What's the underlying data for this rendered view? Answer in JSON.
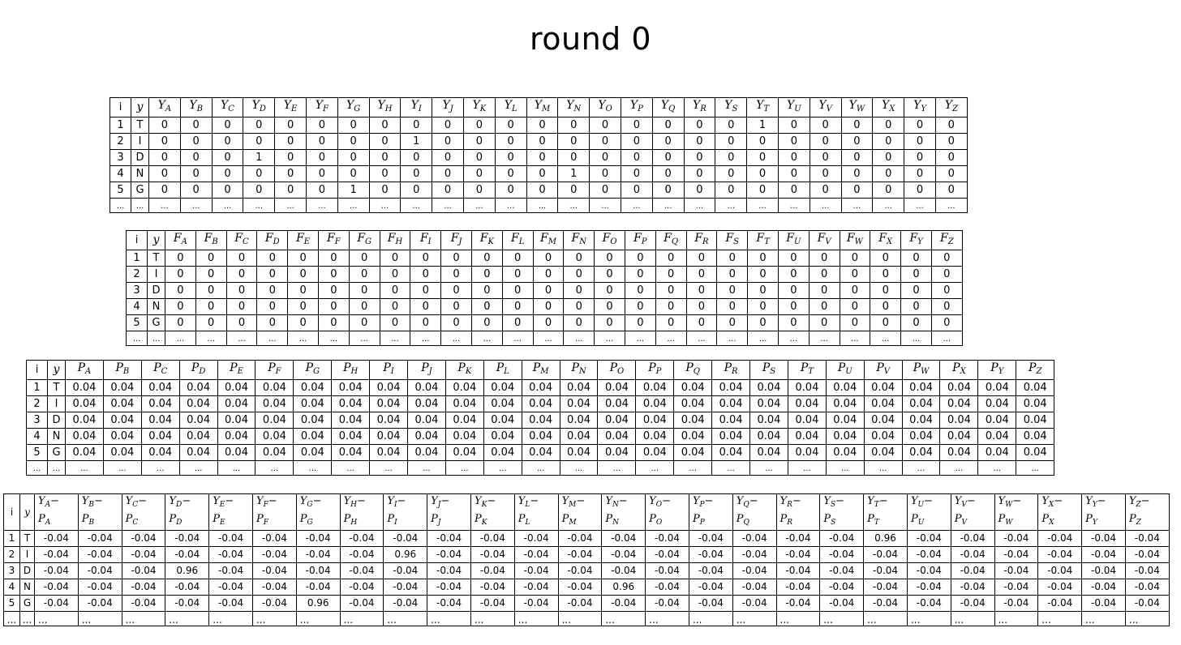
{
  "title": "round 0",
  "letters": [
    "A",
    "B",
    "C",
    "D",
    "E",
    "F",
    "G",
    "H",
    "I",
    "J",
    "K",
    "L",
    "M",
    "N",
    "O",
    "P",
    "Q",
    "R",
    "S",
    "T",
    "U",
    "V",
    "W",
    "X",
    "Y",
    "Z"
  ],
  "ellipsis": "...",
  "headers": {
    "i": "i",
    "y": "y"
  },
  "tables": [
    {
      "key": "Y",
      "prefix": "Y",
      "rows": [
        {
          "i": "1",
          "y": "T",
          "values": [
            "0",
            "0",
            "0",
            "0",
            "0",
            "0",
            "0",
            "0",
            "0",
            "0",
            "0",
            "0",
            "0",
            "0",
            "0",
            "0",
            "0",
            "0",
            "0",
            "1",
            "0",
            "0",
            "0",
            "0",
            "0",
            "0"
          ]
        },
        {
          "i": "2",
          "y": "I",
          "values": [
            "0",
            "0",
            "0",
            "0",
            "0",
            "0",
            "0",
            "0",
            "1",
            "0",
            "0",
            "0",
            "0",
            "0",
            "0",
            "0",
            "0",
            "0",
            "0",
            "0",
            "0",
            "0",
            "0",
            "0",
            "0",
            "0"
          ]
        },
        {
          "i": "3",
          "y": "D",
          "values": [
            "0",
            "0",
            "0",
            "1",
            "0",
            "0",
            "0",
            "0",
            "0",
            "0",
            "0",
            "0",
            "0",
            "0",
            "0",
            "0",
            "0",
            "0",
            "0",
            "0",
            "0",
            "0",
            "0",
            "0",
            "0",
            "0"
          ]
        },
        {
          "i": "4",
          "y": "N",
          "values": [
            "0",
            "0",
            "0",
            "0",
            "0",
            "0",
            "0",
            "0",
            "0",
            "0",
            "0",
            "0",
            "0",
            "1",
            "0",
            "0",
            "0",
            "0",
            "0",
            "0",
            "0",
            "0",
            "0",
            "0",
            "0",
            "0"
          ]
        },
        {
          "i": "5",
          "y": "G",
          "values": [
            "0",
            "0",
            "0",
            "0",
            "0",
            "0",
            "1",
            "0",
            "0",
            "0",
            "0",
            "0",
            "0",
            "0",
            "0",
            "0",
            "0",
            "0",
            "0",
            "0",
            "0",
            "0",
            "0",
            "0",
            "0",
            "0"
          ]
        }
      ]
    },
    {
      "key": "F",
      "prefix": "F",
      "rows": [
        {
          "i": "1",
          "y": "T",
          "values": [
            "0",
            "0",
            "0",
            "0",
            "0",
            "0",
            "0",
            "0",
            "0",
            "0",
            "0",
            "0",
            "0",
            "0",
            "0",
            "0",
            "0",
            "0",
            "0",
            "0",
            "0",
            "0",
            "0",
            "0",
            "0",
            "0"
          ]
        },
        {
          "i": "2",
          "y": "I",
          "values": [
            "0",
            "0",
            "0",
            "0",
            "0",
            "0",
            "0",
            "0",
            "0",
            "0",
            "0",
            "0",
            "0",
            "0",
            "0",
            "0",
            "0",
            "0",
            "0",
            "0",
            "0",
            "0",
            "0",
            "0",
            "0",
            "0"
          ]
        },
        {
          "i": "3",
          "y": "D",
          "values": [
            "0",
            "0",
            "0",
            "0",
            "0",
            "0",
            "0",
            "0",
            "0",
            "0",
            "0",
            "0",
            "0",
            "0",
            "0",
            "0",
            "0",
            "0",
            "0",
            "0",
            "0",
            "0",
            "0",
            "0",
            "0",
            "0"
          ]
        },
        {
          "i": "4",
          "y": "N",
          "values": [
            "0",
            "0",
            "0",
            "0",
            "0",
            "0",
            "0",
            "0",
            "0",
            "0",
            "0",
            "0",
            "0",
            "0",
            "0",
            "0",
            "0",
            "0",
            "0",
            "0",
            "0",
            "0",
            "0",
            "0",
            "0",
            "0"
          ]
        },
        {
          "i": "5",
          "y": "G",
          "values": [
            "0",
            "0",
            "0",
            "0",
            "0",
            "0",
            "0",
            "0",
            "0",
            "0",
            "0",
            "0",
            "0",
            "0",
            "0",
            "0",
            "0",
            "0",
            "0",
            "0",
            "0",
            "0",
            "0",
            "0",
            "0",
            "0"
          ]
        }
      ]
    },
    {
      "key": "P",
      "prefix": "P",
      "rows": [
        {
          "i": "1",
          "y": "T",
          "values": [
            "0.04",
            "0.04",
            "0.04",
            "0.04",
            "0.04",
            "0.04",
            "0.04",
            "0.04",
            "0.04",
            "0.04",
            "0.04",
            "0.04",
            "0.04",
            "0.04",
            "0.04",
            "0.04",
            "0.04",
            "0.04",
            "0.04",
            "0.04",
            "0.04",
            "0.04",
            "0.04",
            "0.04",
            "0.04",
            "0.04"
          ]
        },
        {
          "i": "2",
          "y": "I",
          "values": [
            "0.04",
            "0.04",
            "0.04",
            "0.04",
            "0.04",
            "0.04",
            "0.04",
            "0.04",
            "0.04",
            "0.04",
            "0.04",
            "0.04",
            "0.04",
            "0.04",
            "0.04",
            "0.04",
            "0.04",
            "0.04",
            "0.04",
            "0.04",
            "0.04",
            "0.04",
            "0.04",
            "0.04",
            "0.04",
            "0.04"
          ]
        },
        {
          "i": "3",
          "y": "D",
          "values": [
            "0.04",
            "0.04",
            "0.04",
            "0.04",
            "0.04",
            "0.04",
            "0.04",
            "0.04",
            "0.04",
            "0.04",
            "0.04",
            "0.04",
            "0.04",
            "0.04",
            "0.04",
            "0.04",
            "0.04",
            "0.04",
            "0.04",
            "0.04",
            "0.04",
            "0.04",
            "0.04",
            "0.04",
            "0.04",
            "0.04"
          ]
        },
        {
          "i": "4",
          "y": "N",
          "values": [
            "0.04",
            "0.04",
            "0.04",
            "0.04",
            "0.04",
            "0.04",
            "0.04",
            "0.04",
            "0.04",
            "0.04",
            "0.04",
            "0.04",
            "0.04",
            "0.04",
            "0.04",
            "0.04",
            "0.04",
            "0.04",
            "0.04",
            "0.04",
            "0.04",
            "0.04",
            "0.04",
            "0.04",
            "0.04",
            "0.04"
          ]
        },
        {
          "i": "5",
          "y": "G",
          "values": [
            "0.04",
            "0.04",
            "0.04",
            "0.04",
            "0.04",
            "0.04",
            "0.04",
            "0.04",
            "0.04",
            "0.04",
            "0.04",
            "0.04",
            "0.04",
            "0.04",
            "0.04",
            "0.04",
            "0.04",
            "0.04",
            "0.04",
            "0.04",
            "0.04",
            "0.04",
            "0.04",
            "0.04",
            "0.04",
            "0.04"
          ]
        }
      ]
    },
    {
      "key": "D",
      "prefix": "Y-P",
      "rows": [
        {
          "i": "1",
          "y": "T",
          "values": [
            "-0.04",
            "-0.04",
            "-0.04",
            "-0.04",
            "-0.04",
            "-0.04",
            "-0.04",
            "-0.04",
            "-0.04",
            "-0.04",
            "-0.04",
            "-0.04",
            "-0.04",
            "-0.04",
            "-0.04",
            "-0.04",
            "-0.04",
            "-0.04",
            "-0.04",
            "0.96",
            "-0.04",
            "-0.04",
            "-0.04",
            "-0.04",
            "-0.04",
            "-0.04"
          ]
        },
        {
          "i": "2",
          "y": "I",
          "values": [
            "-0.04",
            "-0.04",
            "-0.04",
            "-0.04",
            "-0.04",
            "-0.04",
            "-0.04",
            "-0.04",
            "0.96",
            "-0.04",
            "-0.04",
            "-0.04",
            "-0.04",
            "-0.04",
            "-0.04",
            "-0.04",
            "-0.04",
            "-0.04",
            "-0.04",
            "-0.04",
            "-0.04",
            "-0.04",
            "-0.04",
            "-0.04",
            "-0.04",
            "-0.04"
          ]
        },
        {
          "i": "3",
          "y": "D",
          "values": [
            "-0.04",
            "-0.04",
            "-0.04",
            "0.96",
            "-0.04",
            "-0.04",
            "-0.04",
            "-0.04",
            "-0.04",
            "-0.04",
            "-0.04",
            "-0.04",
            "-0.04",
            "-0.04",
            "-0.04",
            "-0.04",
            "-0.04",
            "-0.04",
            "-0.04",
            "-0.04",
            "-0.04",
            "-0.04",
            "-0.04",
            "-0.04",
            "-0.04",
            "-0.04"
          ]
        },
        {
          "i": "4",
          "y": "N",
          "values": [
            "-0.04",
            "-0.04",
            "-0.04",
            "-0.04",
            "-0.04",
            "-0.04",
            "-0.04",
            "-0.04",
            "-0.04",
            "-0.04",
            "-0.04",
            "-0.04",
            "-0.04",
            "0.96",
            "-0.04",
            "-0.04",
            "-0.04",
            "-0.04",
            "-0.04",
            "-0.04",
            "-0.04",
            "-0.04",
            "-0.04",
            "-0.04",
            "-0.04",
            "-0.04"
          ]
        },
        {
          "i": "5",
          "y": "G",
          "values": [
            "-0.04",
            "-0.04",
            "-0.04",
            "-0.04",
            "-0.04",
            "-0.04",
            "0.96",
            "-0.04",
            "-0.04",
            "-0.04",
            "-0.04",
            "-0.04",
            "-0.04",
            "-0.04",
            "-0.04",
            "-0.04",
            "-0.04",
            "-0.04",
            "-0.04",
            "-0.04",
            "-0.04",
            "-0.04",
            "-0.04",
            "-0.04",
            "-0.04",
            "-0.04"
          ]
        }
      ]
    }
  ]
}
